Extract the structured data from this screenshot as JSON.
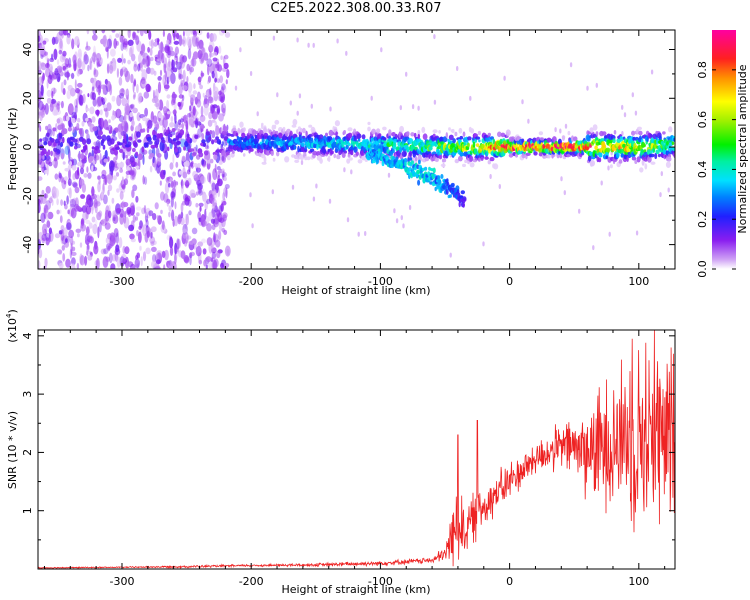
{
  "title": "C2E5.2022.308.00.33.R07",
  "chart_data": [
    {
      "type": "heatmap",
      "xlabel": "Height of straight line (km)",
      "ylabel": "Frequency (Hz)",
      "xlim": [
        -365,
        128
      ],
      "ylim": [
        -50,
        48
      ],
      "xticks": [
        -300,
        -200,
        -100,
        0,
        100
      ],
      "yticks": [
        -40,
        -20,
        0,
        20,
        40
      ],
      "colorbar": {
        "label": "Normalized spectral amplitude",
        "range": [
          0,
          0.96
        ],
        "ticks": [
          0.0,
          0.2,
          0.4,
          0.6,
          0.8
        ],
        "tick_labels": [
          "0.0",
          "0.2",
          "0.4",
          "0.6",
          "0.8"
        ],
        "colormap": "rainbow (white-purple-blue-cyan-green-yellow-orange-red-magenta)"
      },
      "features": [
        {
          "name": "noise region",
          "x_range": [
            -365,
            -218
          ],
          "freq_range": [
            -50,
            48
          ],
          "amplitude": "low (0.0-0.2)"
        },
        {
          "name": "main tone",
          "x": [
            -220,
            -100,
            -50,
            0,
            50,
            100,
            128
          ],
          "freq": [
            2,
            1,
            0,
            0,
            0,
            0,
            1
          ],
          "amplitude": [
            0.3,
            0.45,
            0.6,
            0.9,
            0.96,
            0.7,
            0.5
          ]
        },
        {
          "name": "drifting tone",
          "x": [
            -110,
            -80,
            -60,
            -45,
            -35
          ],
          "freq": [
            -2,
            -8,
            -13,
            -18,
            -22
          ],
          "amplitude": [
            0.35,
            0.4,
            0.4,
            0.3,
            0.2
          ]
        }
      ]
    },
    {
      "type": "line",
      "xlabel": "Height of straight line (km)",
      "ylabel": "SNR (10 * v/v)",
      "y_multiplier": "(x10",
      "y_multiplier_exp": "4",
      "y_multiplier_close": ")",
      "xlim": [
        -365,
        128
      ],
      "ylim": [
        0,
        4.1
      ],
      "xticks": [
        -300,
        -200,
        -100,
        0,
        100
      ],
      "yticks": [
        1,
        2,
        3,
        4
      ],
      "color": "#ee2222",
      "series": [
        {
          "envelope_x": [
            -365,
            -300,
            -250,
            -200,
            -150,
            -100,
            -60,
            -50,
            -45,
            -40,
            -35,
            -30,
            -20,
            -10,
            0,
            10,
            20,
            30,
            40,
            50,
            60,
            70,
            80,
            90,
            100,
            110,
            120,
            128
          ],
          "envelope_mean": [
            0.02,
            0.03,
            0.04,
            0.06,
            0.07,
            0.1,
            0.15,
            0.25,
            0.55,
            0.75,
            0.7,
            0.8,
            1.1,
            1.3,
            1.5,
            1.7,
            1.9,
            2.0,
            2.1,
            2.1,
            2.0,
            2.1,
            2.2,
            2.3,
            2.3,
            2.3,
            2.2,
            2.2
          ],
          "envelope_spread": [
            0.01,
            0.01,
            0.02,
            0.02,
            0.03,
            0.04,
            0.05,
            0.15,
            0.5,
            0.7,
            0.5,
            0.45,
            0.4,
            0.35,
            0.35,
            0.3,
            0.3,
            0.35,
            0.4,
            0.55,
            0.8,
            1.0,
            1.2,
            1.4,
            1.6,
            1.7,
            1.6,
            1.5
          ],
          "peaks": [
            {
              "x": -40,
              "y": 2.3
            },
            {
              "x": -25,
              "y": 2.55
            },
            {
              "x": 75,
              "y": 3.25
            },
            {
              "x": 95,
              "y": 3.95
            },
            {
              "x": 112,
              "y": 4.1
            },
            {
              "x": 125,
              "y": 3.8
            }
          ]
        }
      ]
    }
  ]
}
